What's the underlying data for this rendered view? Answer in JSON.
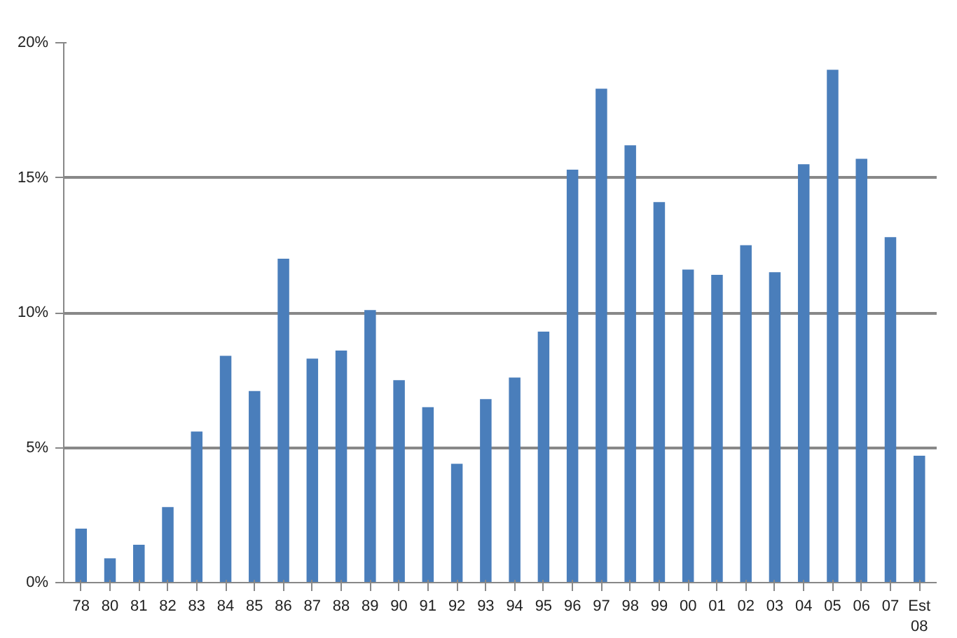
{
  "chart_data": {
    "type": "bar",
    "categories": [
      "78",
      "80",
      "81",
      "82",
      "83",
      "84",
      "85",
      "86",
      "87",
      "88",
      "89",
      "90",
      "91",
      "92",
      "93",
      "94",
      "95",
      "96",
      "97",
      "98",
      "99",
      "00",
      "01",
      "02",
      "03",
      "04",
      "05",
      "06",
      "07",
      "Est\n08"
    ],
    "values": [
      2.0,
      0.9,
      1.4,
      2.8,
      5.6,
      8.4,
      7.1,
      12.0,
      8.3,
      8.6,
      10.1,
      7.5,
      6.5,
      4.4,
      6.8,
      7.6,
      9.3,
      15.3,
      18.3,
      16.2,
      14.1,
      11.6,
      11.4,
      12.5,
      11.5,
      15.5,
      19.0,
      15.7,
      12.8,
      4.7
    ],
    "color": "#4a7ebb",
    "ylim": [
      0,
      20
    ],
    "yticks": [
      {
        "value": 0,
        "label": "0%"
      },
      {
        "value": 5,
        "label": "5%"
      },
      {
        "value": 10,
        "label": "10%"
      },
      {
        "value": 15,
        "label": "15%"
      },
      {
        "value": 20,
        "label": "20%"
      }
    ],
    "grid": "y"
  }
}
